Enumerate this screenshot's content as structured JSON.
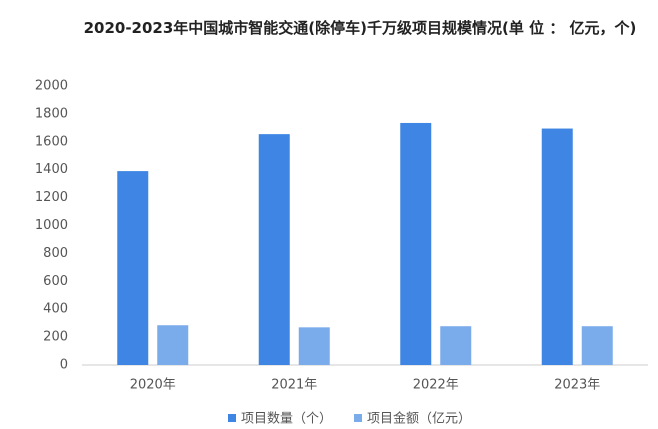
{
  "chart_data": {
    "type": "bar",
    "title": "2020-2023年中国城市智能交通(除停车)千万级项目规模情况(单 位 ： 亿元，个)",
    "categories": [
      "2020年",
      "2021年",
      "2022年",
      "2023年"
    ],
    "series": [
      {
        "name": "项目数量（个）",
        "color": "#3f86e4",
        "values": [
          1390,
          1655,
          1735,
          1695
        ]
      },
      {
        "name": "项目金额（亿元）",
        "color": "#7aabea",
        "values": [
          285,
          270,
          278,
          278
        ]
      }
    ],
    "ylim": [
      0,
      2000
    ],
    "yticks": [
      0,
      200,
      400,
      600,
      800,
      1000,
      1200,
      1400,
      1600,
      1800,
      2000
    ],
    "grid": false,
    "legend": "bottom"
  }
}
